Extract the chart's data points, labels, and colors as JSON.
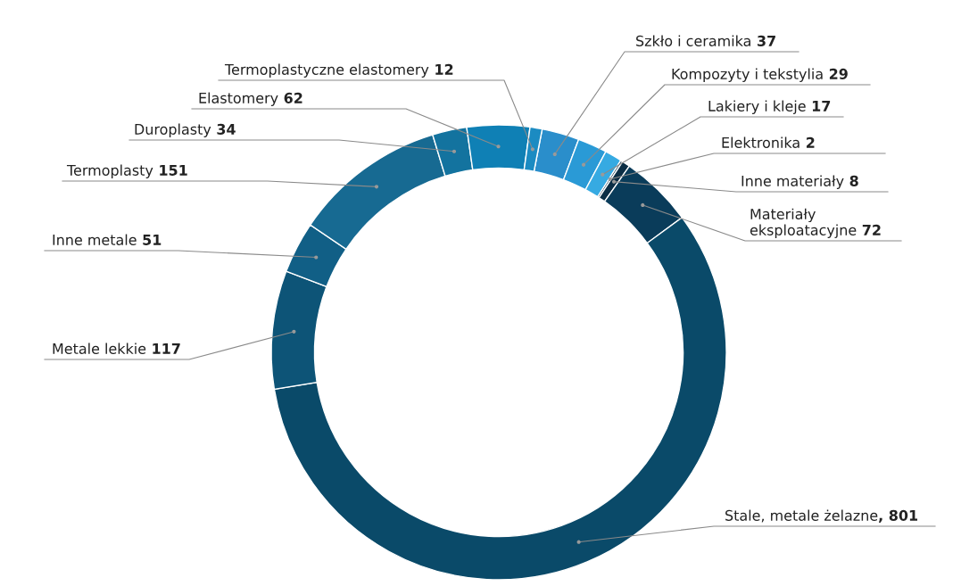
{
  "chart_data": {
    "type": "donut",
    "categories": [
      "Szkło i ceramika",
      "Kompozyty i tekstylia",
      "Lakiery i kleje",
      "Elektronika",
      "Inne materiały",
      "Materiały\neksploatacyjne",
      "Stale, metale żelazne",
      "Metale lekkie",
      "Inne metale",
      "Termoplasty",
      "Duroplasty",
      "Elastomery",
      "Termoplastyczne elastomery"
    ],
    "values": [
      37,
      29,
      17,
      2,
      8,
      72,
      801,
      117,
      51,
      151,
      34,
      62,
      12
    ],
    "colors": [
      "#2a8ecb",
      "#2a9ad6",
      "#36aae2",
      "#17384f",
      "#0c2e45",
      "#0a3c5a",
      "#0a4a69",
      "#0d5477",
      "#115f86",
      "#176a92",
      "#13739f",
      "#0f80b5",
      "#1b8bc2"
    ],
    "value_labels": [
      "37",
      "29",
      "17",
      "2",
      "8",
      "72",
      ", 801",
      "117",
      "51",
      "151",
      "34",
      "62",
      "12"
    ]
  }
}
